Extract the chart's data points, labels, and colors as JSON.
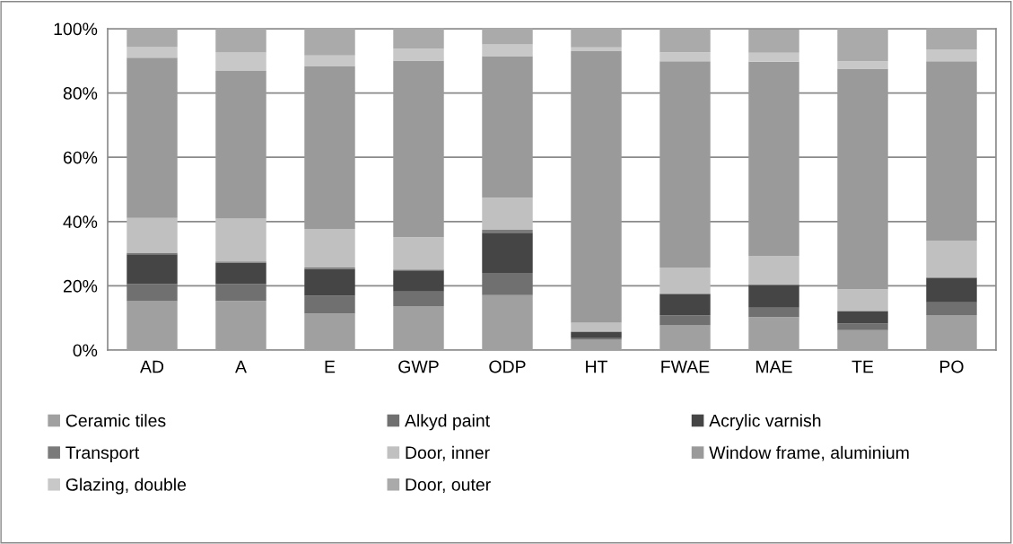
{
  "chart_data": {
    "type": "bar",
    "stacked": true,
    "categories": [
      "AD",
      "A",
      "E",
      "GWP",
      "ODP",
      "HT",
      "FWAE",
      "MAE",
      "TE",
      "PO"
    ],
    "series": [
      {
        "name": "Ceramic tiles",
        "color": "#a0a0a0",
        "values": [
          15.2,
          15.3,
          11.4,
          13.7,
          17.1,
          3.2,
          7.7,
          10.3,
          6.2,
          10.9
        ]
      },
      {
        "name": "Alkyd paint",
        "color": "#707070",
        "values": [
          5.3,
          5.2,
          5.5,
          4.5,
          6.9,
          0.7,
          3.1,
          2.9,
          2.1,
          4.0
        ]
      },
      {
        "name": "Acrylic varnish",
        "color": "#454545",
        "values": [
          9.3,
          6.7,
          8.3,
          6.6,
          12.5,
          1.7,
          6.6,
          7.1,
          3.7,
          7.5
        ]
      },
      {
        "name": "Transport",
        "color": "#7a7a7a",
        "values": [
          0.5,
          0.4,
          0.5,
          0.3,
          0.9,
          0.2,
          0.2,
          null,
          0.2,
          0.2
        ]
      },
      {
        "name": "Door, inner",
        "color": "#c0c0c0",
        "values": [
          10.8,
          13.3,
          12.0,
          10.0,
          10.0,
          2.7,
          8.1,
          9.0,
          6.7,
          11.5
        ]
      },
      {
        "name": "Window frame, aluminium",
        "color": "#9a9a9a",
        "values": [
          49.9,
          46.0,
          50.6,
          55.0,
          44.1,
          84.5,
          64.2,
          60.4,
          68.7,
          55.8
        ]
      },
      {
        "name": "Glazing, double",
        "color": "#c8c8c8",
        "values": [
          3.3,
          5.7,
          3.4,
          3.7,
          3.6,
          1.2,
          2.8,
          2.8,
          2.3,
          3.7
        ]
      },
      {
        "name": "Door, outer",
        "color": "#aaaaaa",
        "values": [
          5.7,
          7.4,
          8.3,
          6.2,
          4.9,
          5.8,
          7.3,
          7.3,
          10.1,
          6.4
        ]
      }
    ],
    "ylim": [
      0,
      100
    ],
    "yticks": [
      {
        "value": 0,
        "label": "0%"
      },
      {
        "value": 20,
        "label": "20%"
      },
      {
        "value": 40,
        "label": "40%"
      },
      {
        "value": 60,
        "label": "60%"
      },
      {
        "value": 80,
        "label": "80%"
      },
      {
        "value": 100,
        "label": "100%"
      }
    ],
    "grid": "y",
    "legend": "bottom"
  }
}
